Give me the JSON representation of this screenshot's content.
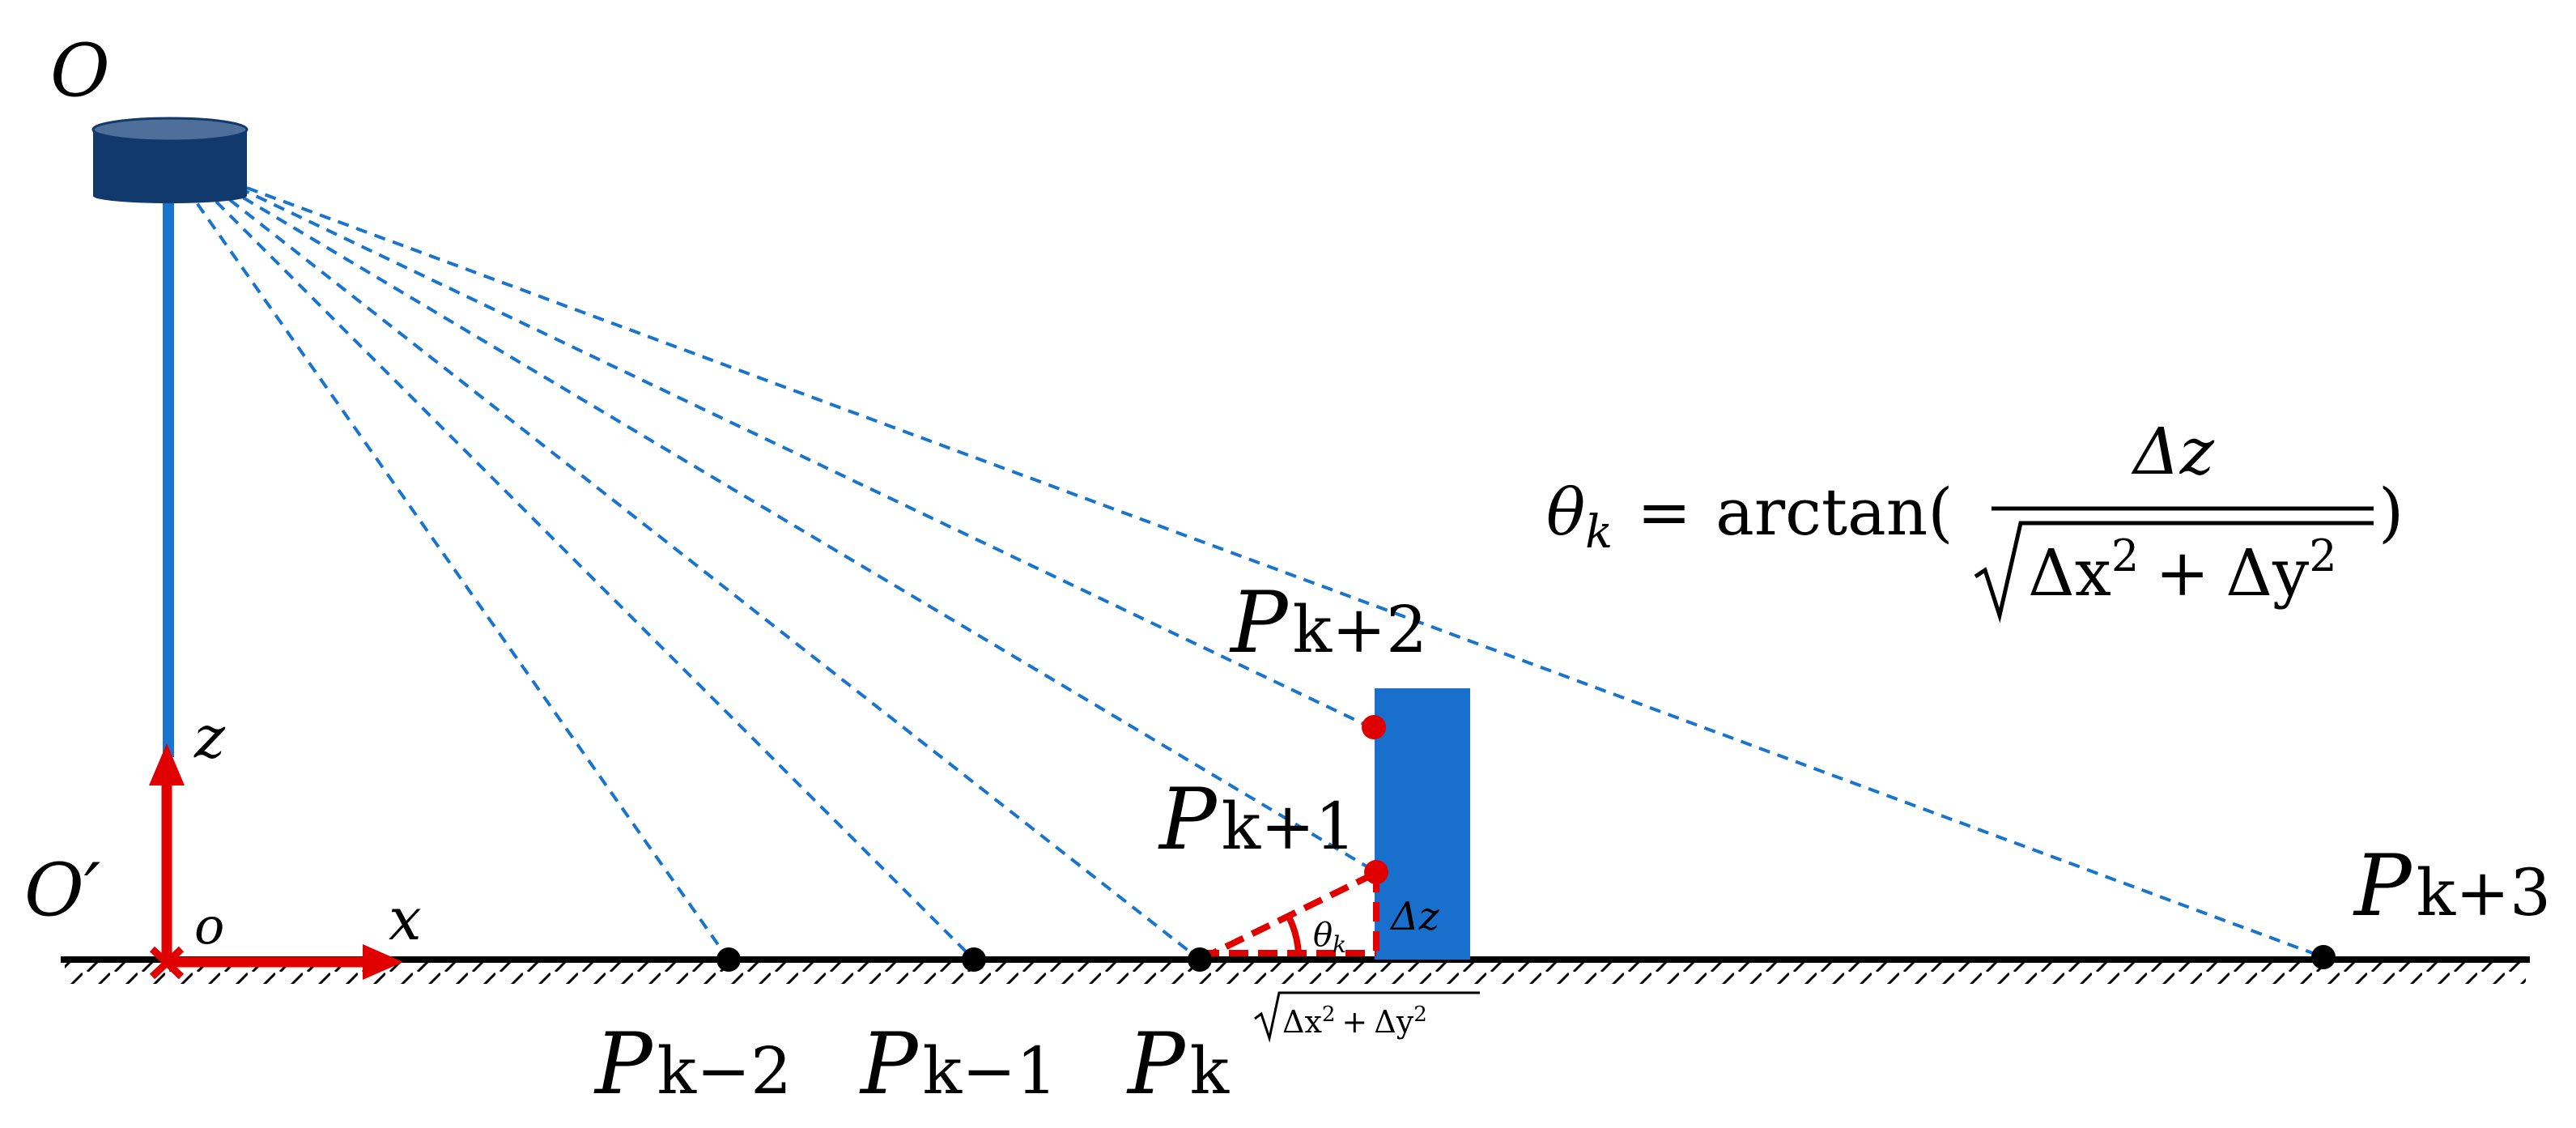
{
  "labels": {
    "origin_top": "O",
    "origin_ground": "O′",
    "axis_origin": "o",
    "axis_x": "x",
    "axis_z": "z",
    "points": [
      {
        "base": "P",
        "sub": "k−2"
      },
      {
        "base": "P",
        "sub": "k−1"
      },
      {
        "base": "P",
        "sub": "k"
      },
      {
        "base": "P",
        "sub": "k+1"
      },
      {
        "base": "P",
        "sub": "k+2"
      },
      {
        "base": "P",
        "sub": "k+3"
      }
    ],
    "theta": {
      "base": "θ",
      "sub": "k"
    },
    "delta_z": "Δz",
    "horizontal_dist": {
      "d1": "Δx",
      "d2": "Δy",
      "exp": "2",
      "plus": "+"
    }
  },
  "formula": {
    "lhs_base": "θ",
    "lhs_sub": "k",
    "equals": "=",
    "func": "arctan(",
    "close": ")",
    "numerator": "Δz",
    "den_d1": "Δx",
    "den_d2": "Δy",
    "den_exp": "2",
    "den_plus": "+"
  },
  "colors": {
    "sensor": "#12396b",
    "sensor_top": "#4d6f99",
    "pole": "#1874cd",
    "ray": "#1874cd",
    "obstacle": "#1870cc",
    "axis": "#e00000",
    "highlight_point": "#e00000",
    "ground": "#000000"
  }
}
